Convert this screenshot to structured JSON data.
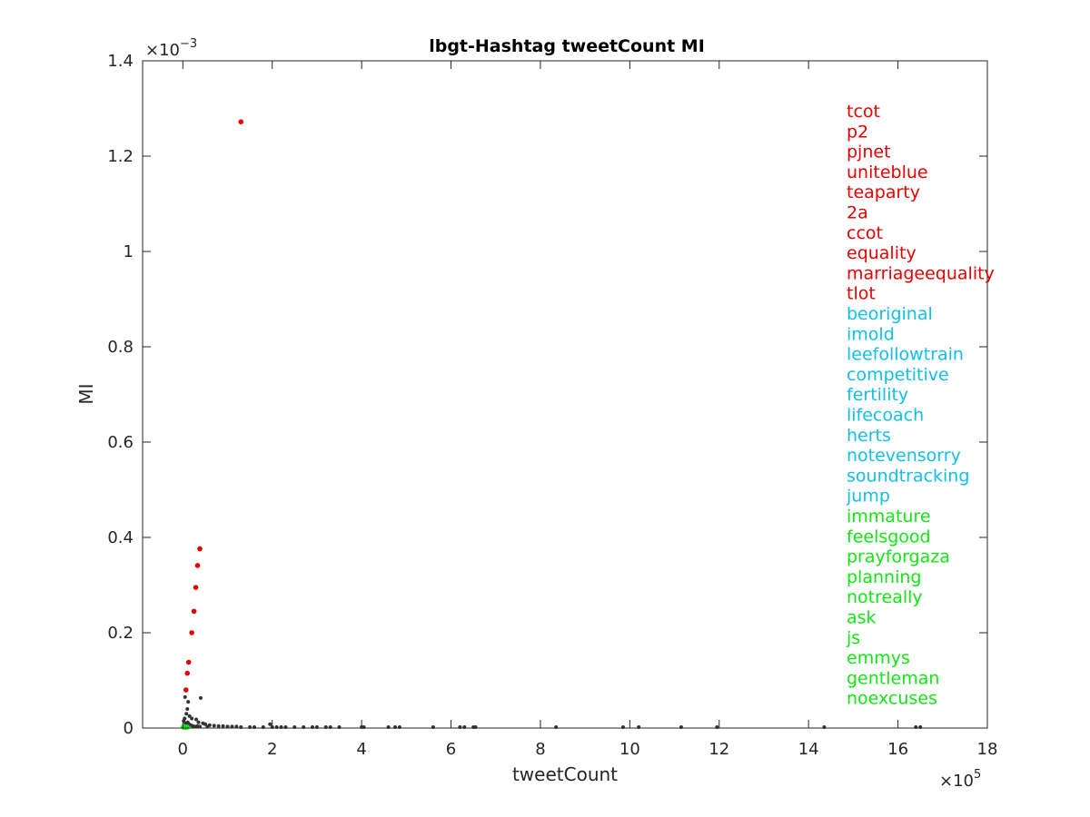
{
  "chart_data": {
    "type": "scatter",
    "title": "lbgt-Hashtag tweetCount MI",
    "xlabel": "tweetCount",
    "ylabel": "MI",
    "x_exponent": {
      "base": "×10",
      "power": "5"
    },
    "y_exponent": {
      "base": "×10",
      "power": "−3"
    },
    "xlim": [
      -0.9,
      18
    ],
    "ylim": [
      0,
      1.4
    ],
    "x_ticks": [
      "0",
      "2",
      "4",
      "6",
      "8",
      "10",
      "12",
      "14",
      "16",
      "18"
    ],
    "y_ticks": [
      "0",
      "0.2",
      "0.4",
      "0.6",
      "0.8",
      "1",
      "1.2",
      "1.4"
    ],
    "grid": false,
    "colors": {
      "red": "#e60000",
      "blue": "#12bfe6",
      "green": "#14e614",
      "other": "#333333"
    },
    "series": [
      {
        "color": "red",
        "points": [
          [
            1.3,
            1.272
          ],
          [
            0.38,
            0.376
          ],
          [
            0.33,
            0.341
          ],
          [
            0.29,
            0.295
          ],
          [
            0.25,
            0.245
          ],
          [
            0.2,
            0.2
          ],
          [
            0.13,
            0.138
          ],
          [
            0.1,
            0.115
          ],
          [
            0.07,
            0.08
          ]
        ]
      },
      {
        "color": "green",
        "points": [
          [
            0.01,
            0.002
          ],
          [
            0.02,
            0.002
          ],
          [
            0.03,
            0.002
          ],
          [
            0.04,
            0.002
          ],
          [
            0.05,
            0.002
          ],
          [
            0.06,
            0.002
          ],
          [
            0.07,
            0.002
          ],
          [
            0.08,
            0.002
          ],
          [
            0.09,
            0.002
          ],
          [
            0.1,
            0.002
          ]
        ]
      },
      {
        "color": "other",
        "points": [
          [
            0.05,
            0.065
          ],
          [
            0.12,
            0.055
          ],
          [
            0.4,
            0.063
          ],
          [
            0.1,
            0.04
          ],
          [
            0.08,
            0.03
          ],
          [
            0.15,
            0.025
          ],
          [
            0.2,
            0.02
          ],
          [
            0.3,
            0.018
          ],
          [
            0.35,
            0.012
          ],
          [
            0.45,
            0.01
          ],
          [
            0.5,
            0.008
          ],
          [
            0.6,
            0.006
          ],
          [
            0.7,
            0.005
          ],
          [
            0.8,
            0.004
          ],
          [
            0.9,
            0.004
          ],
          [
            1.0,
            0.003
          ],
          [
            1.1,
            0.003
          ],
          [
            1.2,
            0.003
          ],
          [
            1.3,
            0.002
          ],
          [
            1.5,
            0.002
          ],
          [
            1.6,
            0.002
          ],
          [
            1.8,
            0.002
          ],
          [
            1.95,
            0.008
          ],
          [
            2.0,
            0.002
          ],
          [
            2.1,
            0.002
          ],
          [
            2.2,
            0.002
          ],
          [
            2.3,
            0.002
          ],
          [
            2.5,
            0.002
          ],
          [
            2.7,
            0.002
          ],
          [
            2.9,
            0.002
          ],
          [
            3.0,
            0.002
          ],
          [
            3.2,
            0.002
          ],
          [
            3.3,
            0.002
          ],
          [
            3.5,
            0.002
          ],
          [
            4.0,
            0.002
          ],
          [
            4.05,
            0.002
          ],
          [
            4.6,
            0.002
          ],
          [
            4.75,
            0.002
          ],
          [
            4.85,
            0.002
          ],
          [
            5.6,
            0.002
          ],
          [
            6.2,
            0.002
          ],
          [
            6.3,
            0.002
          ],
          [
            6.5,
            0.002
          ],
          [
            6.55,
            0.002
          ],
          [
            8.35,
            0.002
          ],
          [
            9.85,
            0.002
          ],
          [
            10.2,
            0.002
          ],
          [
            11.15,
            0.002
          ],
          [
            11.95,
            0.002
          ],
          [
            14.35,
            0.002
          ],
          [
            16.4,
            0.002
          ],
          [
            16.5,
            0.002
          ],
          [
            0.02,
            0.015
          ],
          [
            0.04,
            0.02
          ],
          [
            0.06,
            0.01
          ],
          [
            0.09,
            0.005
          ],
          [
            0.11,
            0.012
          ],
          [
            0.14,
            0.008
          ],
          [
            0.18,
            0.006
          ],
          [
            0.22,
            0.004
          ],
          [
            0.26,
            0.003
          ],
          [
            0.32,
            0.004
          ],
          [
            0.38,
            0.003
          ],
          [
            0.55,
            0.003
          ]
        ]
      }
    ],
    "legend": {
      "placement": "top-right",
      "entries": [
        {
          "label": "tcot",
          "color": "red"
        },
        {
          "label": "p2",
          "color": "red"
        },
        {
          "label": "pjnet",
          "color": "red"
        },
        {
          "label": "uniteblue",
          "color": "red"
        },
        {
          "label": "teaparty",
          "color": "red"
        },
        {
          "label": "2a",
          "color": "red"
        },
        {
          "label": "ccot",
          "color": "red"
        },
        {
          "label": "equality",
          "color": "red"
        },
        {
          "label": "marriageequality",
          "color": "red"
        },
        {
          "label": "tlot",
          "color": "red"
        },
        {
          "label": "beoriginal",
          "color": "blue"
        },
        {
          "label": "imold",
          "color": "blue"
        },
        {
          "label": "leefollowtrain",
          "color": "blue"
        },
        {
          "label": "competitive",
          "color": "blue"
        },
        {
          "label": "fertility",
          "color": "blue"
        },
        {
          "label": "lifecoach",
          "color": "blue"
        },
        {
          "label": "herts",
          "color": "blue"
        },
        {
          "label": "notevensorry",
          "color": "blue"
        },
        {
          "label": "soundtracking",
          "color": "blue"
        },
        {
          "label": "jump",
          "color": "blue"
        },
        {
          "label": "immature",
          "color": "green"
        },
        {
          "label": "feelsgood",
          "color": "green"
        },
        {
          "label": "prayforgaza",
          "color": "green"
        },
        {
          "label": "planning",
          "color": "green"
        },
        {
          "label": "notreally",
          "color": "green"
        },
        {
          "label": "ask",
          "color": "green"
        },
        {
          "label": "js",
          "color": "green"
        },
        {
          "label": "emmys",
          "color": "green"
        },
        {
          "label": "gentleman",
          "color": "green"
        },
        {
          "label": "noexcuses",
          "color": "green"
        }
      ]
    }
  }
}
